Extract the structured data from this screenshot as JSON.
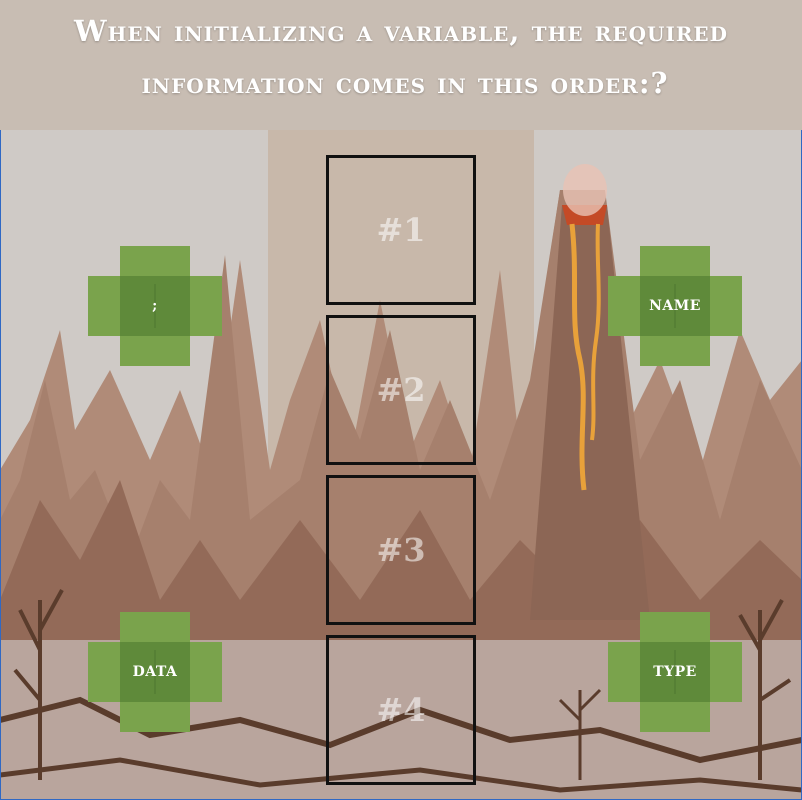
{
  "question": {
    "line1": "When initializing a variable, the required",
    "line2": "information comes in this order:?"
  },
  "slots": [
    "#1",
    "#2",
    "#3",
    "#4"
  ],
  "tiles": {
    "top_left": ";",
    "top_right": "NAME",
    "bottom_left": "DATA",
    "bottom_right": "TYPE"
  },
  "colors": {
    "tile_green": "#7aa34c",
    "tile_dark": "#5f8a3a",
    "slot_border": "#111111",
    "sky": "#cfcac7",
    "lava": "#e8a13a"
  }
}
